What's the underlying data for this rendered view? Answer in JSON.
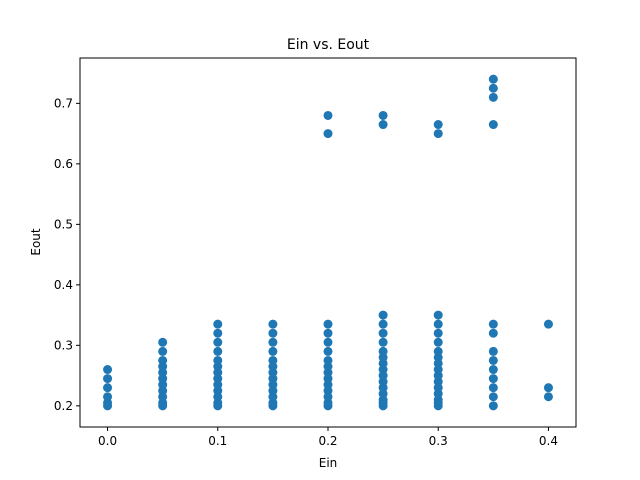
{
  "chart_data": {
    "type": "scatter",
    "title": "Ein vs. Eout",
    "xlabel": "Ein",
    "ylabel": "Eout",
    "xlim": [
      -0.025,
      0.425
    ],
    "ylim": [
      0.165,
      0.775
    ],
    "xticks": [
      "0.0",
      "0.1",
      "0.2",
      "0.3",
      "0.4"
    ],
    "yticks": [
      "0.2",
      "0.3",
      "0.4",
      "0.5",
      "0.6",
      "0.7"
    ],
    "grid": false,
    "legend": "none",
    "marker_color": "#1f77b4",
    "series": [
      {
        "points": [
          [
            0.0,
            0.2
          ],
          [
            0.0,
            0.205
          ],
          [
            0.0,
            0.215
          ],
          [
            0.0,
            0.23
          ],
          [
            0.0,
            0.245
          ],
          [
            0.0,
            0.26
          ],
          [
            0.05,
            0.2
          ],
          [
            0.05,
            0.205
          ],
          [
            0.05,
            0.215
          ],
          [
            0.05,
            0.225
          ],
          [
            0.05,
            0.235
          ],
          [
            0.05,
            0.245
          ],
          [
            0.05,
            0.255
          ],
          [
            0.05,
            0.265
          ],
          [
            0.05,
            0.275
          ],
          [
            0.05,
            0.29
          ],
          [
            0.05,
            0.305
          ],
          [
            0.1,
            0.2
          ],
          [
            0.1,
            0.205
          ],
          [
            0.1,
            0.215
          ],
          [
            0.1,
            0.225
          ],
          [
            0.1,
            0.235
          ],
          [
            0.1,
            0.245
          ],
          [
            0.1,
            0.255
          ],
          [
            0.1,
            0.265
          ],
          [
            0.1,
            0.275
          ],
          [
            0.1,
            0.29
          ],
          [
            0.1,
            0.305
          ],
          [
            0.1,
            0.32
          ],
          [
            0.1,
            0.335
          ],
          [
            0.15,
            0.2
          ],
          [
            0.15,
            0.205
          ],
          [
            0.15,
            0.215
          ],
          [
            0.15,
            0.225
          ],
          [
            0.15,
            0.235
          ],
          [
            0.15,
            0.245
          ],
          [
            0.15,
            0.255
          ],
          [
            0.15,
            0.265
          ],
          [
            0.15,
            0.275
          ],
          [
            0.15,
            0.29
          ],
          [
            0.15,
            0.305
          ],
          [
            0.15,
            0.32
          ],
          [
            0.15,
            0.335
          ],
          [
            0.2,
            0.2
          ],
          [
            0.2,
            0.205
          ],
          [
            0.2,
            0.215
          ],
          [
            0.2,
            0.225
          ],
          [
            0.2,
            0.235
          ],
          [
            0.2,
            0.245
          ],
          [
            0.2,
            0.255
          ],
          [
            0.2,
            0.265
          ],
          [
            0.2,
            0.275
          ],
          [
            0.2,
            0.29
          ],
          [
            0.2,
            0.305
          ],
          [
            0.2,
            0.32
          ],
          [
            0.2,
            0.335
          ],
          [
            0.2,
            0.65
          ],
          [
            0.2,
            0.68
          ],
          [
            0.25,
            0.2
          ],
          [
            0.25,
            0.205
          ],
          [
            0.25,
            0.21
          ],
          [
            0.25,
            0.22
          ],
          [
            0.25,
            0.23
          ],
          [
            0.25,
            0.24
          ],
          [
            0.25,
            0.25
          ],
          [
            0.25,
            0.26
          ],
          [
            0.25,
            0.27
          ],
          [
            0.25,
            0.28
          ],
          [
            0.25,
            0.29
          ],
          [
            0.25,
            0.305
          ],
          [
            0.25,
            0.32
          ],
          [
            0.25,
            0.335
          ],
          [
            0.25,
            0.35
          ],
          [
            0.25,
            0.665
          ],
          [
            0.25,
            0.68
          ],
          [
            0.3,
            0.2
          ],
          [
            0.3,
            0.205
          ],
          [
            0.3,
            0.21
          ],
          [
            0.3,
            0.22
          ],
          [
            0.3,
            0.23
          ],
          [
            0.3,
            0.24
          ],
          [
            0.3,
            0.25
          ],
          [
            0.3,
            0.26
          ],
          [
            0.3,
            0.27
          ],
          [
            0.3,
            0.28
          ],
          [
            0.3,
            0.29
          ],
          [
            0.3,
            0.305
          ],
          [
            0.3,
            0.32
          ],
          [
            0.3,
            0.335
          ],
          [
            0.3,
            0.35
          ],
          [
            0.3,
            0.65
          ],
          [
            0.3,
            0.665
          ],
          [
            0.35,
            0.2
          ],
          [
            0.35,
            0.215
          ],
          [
            0.35,
            0.23
          ],
          [
            0.35,
            0.245
          ],
          [
            0.35,
            0.26
          ],
          [
            0.35,
            0.275
          ],
          [
            0.35,
            0.29
          ],
          [
            0.35,
            0.32
          ],
          [
            0.35,
            0.335
          ],
          [
            0.35,
            0.665
          ],
          [
            0.35,
            0.71
          ],
          [
            0.35,
            0.725
          ],
          [
            0.35,
            0.74
          ],
          [
            0.4,
            0.215
          ],
          [
            0.4,
            0.23
          ],
          [
            0.4,
            0.335
          ]
        ]
      }
    ]
  }
}
